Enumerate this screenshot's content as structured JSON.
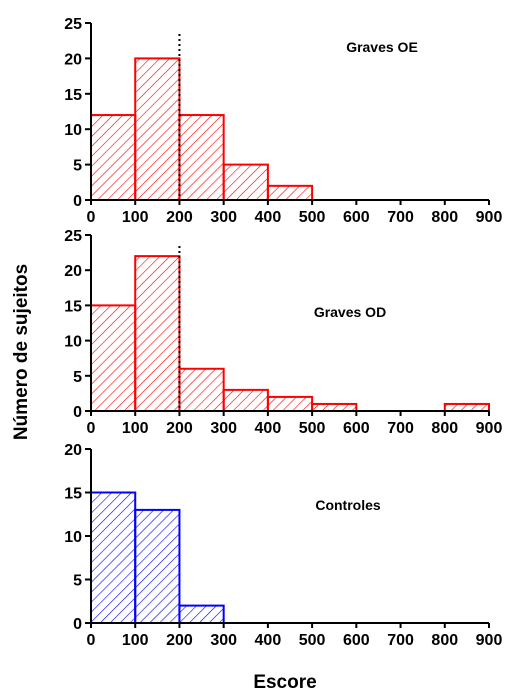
{
  "ylabel": "Número de sujeitos",
  "xlabel": "Escore",
  "chart_data": [
    {
      "type": "bar",
      "title": "Graves OE",
      "bins": [
        [
          0,
          100
        ],
        [
          100,
          200
        ],
        [
          200,
          300
        ],
        [
          300,
          400
        ],
        [
          400,
          500
        ]
      ],
      "values": [
        12,
        20,
        12,
        5,
        2
      ],
      "xlim": [
        0,
        900
      ],
      "ylim": [
        0,
        25
      ],
      "xticks": [
        "0",
        "100",
        "200",
        "300",
        "400",
        "500",
        "600",
        "700",
        "800",
        "900"
      ],
      "yticks": [
        "0",
        "5",
        "10",
        "15",
        "20",
        "25"
      ],
      "color": "#ff0000",
      "cutoff_line_x": 200
    },
    {
      "type": "bar",
      "title": "Graves OD",
      "bins": [
        [
          0,
          100
        ],
        [
          100,
          200
        ],
        [
          200,
          300
        ],
        [
          300,
          400
        ],
        [
          400,
          500
        ],
        [
          500,
          600
        ],
        [
          800,
          900
        ]
      ],
      "values": [
        15,
        22,
        6,
        3,
        2,
        1,
        1
      ],
      "xlim": [
        0,
        900
      ],
      "ylim": [
        0,
        25
      ],
      "xticks": [
        "0",
        "100",
        "200",
        "300",
        "400",
        "500",
        "600",
        "700",
        "800",
        "900"
      ],
      "yticks": [
        "0",
        "5",
        "10",
        "15",
        "20",
        "25"
      ],
      "color": "#ff0000",
      "cutoff_line_x": 200
    },
    {
      "type": "bar",
      "title": "Controles",
      "bins": [
        [
          0,
          100
        ],
        [
          100,
          200
        ],
        [
          200,
          300
        ]
      ],
      "values": [
        15,
        13,
        2
      ],
      "xlim": [
        0,
        900
      ],
      "ylim": [
        0,
        20
      ],
      "xticks": [
        "0",
        "100",
        "200",
        "300",
        "400",
        "500",
        "600",
        "700",
        "800",
        "900"
      ],
      "yticks": [
        "0",
        "5",
        "10",
        "15",
        "20"
      ],
      "color": "#0000ff"
    }
  ]
}
